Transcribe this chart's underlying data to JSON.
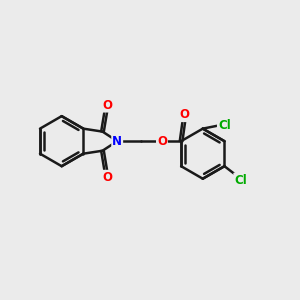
{
  "background_color": "#ebebeb",
  "bond_color": "#1a1a1a",
  "bond_width": 1.8,
  "atom_colors": {
    "O": "#ff0000",
    "N": "#0000ff",
    "Cl": "#00aa00"
  },
  "font_size_atoms": 8.5,
  "figsize": [
    3.0,
    3.0
  ],
  "dpi": 100,
  "xlim": [
    0,
    10
  ],
  "ylim": [
    0,
    10
  ]
}
